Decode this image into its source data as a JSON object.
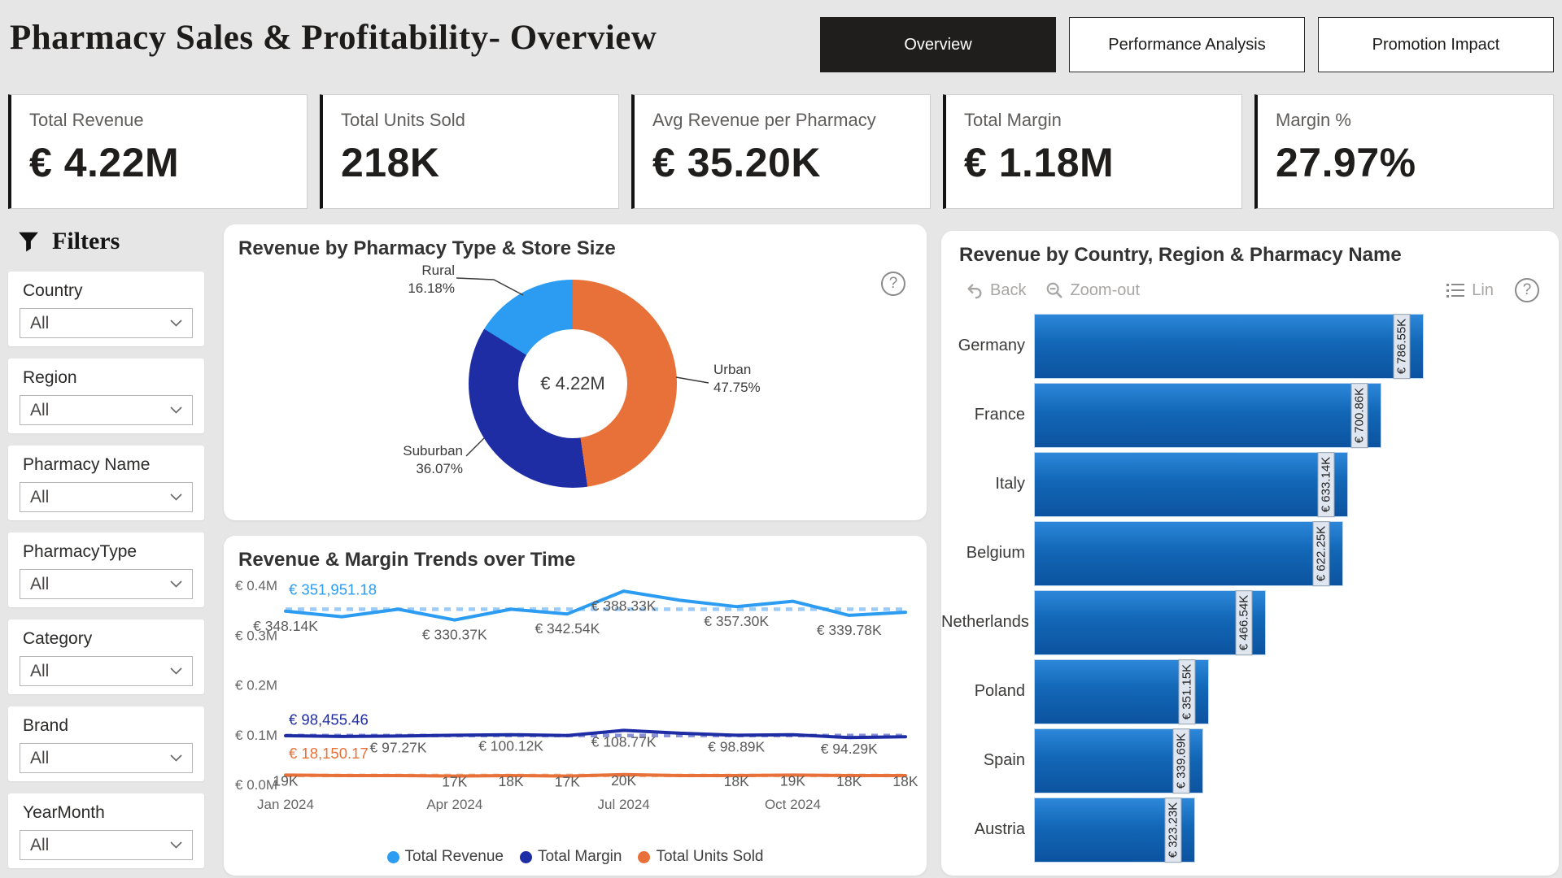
{
  "page": {
    "title": "Pharmacy Sales & Profitability- Overview"
  },
  "tabs": [
    {
      "label": "Overview",
      "active": true
    },
    {
      "label": "Performance Analysis",
      "active": false
    },
    {
      "label": "Promotion Impact",
      "active": false
    }
  ],
  "kpis": [
    {
      "label": "Total Revenue",
      "value": "€ 4.22M"
    },
    {
      "label": "Total Units Sold",
      "value": "218K"
    },
    {
      "label": "Avg Revenue per Pharmacy",
      "value": "€ 35.20K"
    },
    {
      "label": "Total Margin",
      "value": "€ 1.18M"
    },
    {
      "label": "Margin %",
      "value": "27.97%"
    }
  ],
  "filters": {
    "heading": "Filters",
    "items": [
      {
        "label": "Country",
        "value": "All"
      },
      {
        "label": "Region",
        "value": "All"
      },
      {
        "label": "Pharmacy Name",
        "value": "All"
      },
      {
        "label": "PharmacyType",
        "value": "All"
      },
      {
        "label": "Category",
        "value": "All"
      },
      {
        "label": "Brand",
        "value": "All"
      },
      {
        "label": "YearMonth",
        "value": "All"
      }
    ]
  },
  "chart_data": [
    {
      "id": "donut",
      "type": "pie",
      "title": "Revenue by Pharmacy Type & Store Size",
      "center_label": "€ 4.22M",
      "help_icon": "?",
      "slices": [
        {
          "label": "Urban",
          "pct": 47.75,
          "pct_label": "47.75%",
          "color": "#E8713A"
        },
        {
          "label": "Suburban",
          "pct": 36.07,
          "pct_label": "36.07%",
          "color": "#1F2DA5"
        },
        {
          "label": "Rural",
          "pct": 16.18,
          "pct_label": "16.18%",
          "color": "#2B9CF2"
        }
      ]
    },
    {
      "id": "trend",
      "type": "line",
      "title": "Revenue & Margin Trends over Time",
      "x_ticks": [
        "Jan 2024",
        "Apr 2024",
        "Jul 2024",
        "Oct 2024"
      ],
      "x_tick_months": [
        0,
        3,
        6,
        9
      ],
      "y_ticks": [
        "€ 0.4M",
        "€ 0.3M",
        "€ 0.2M",
        "€ 0.1M",
        "€ 0.0M"
      ],
      "y_axis_max_k": 400,
      "series": [
        {
          "name": "Total Revenue",
          "color": "#2B9CF2",
          "avg_color": "#9CCBF7",
          "avg_k": 351.95,
          "avg_label": "€ 351,951.18",
          "values_k": [
            348.14,
            337,
            352,
            330.37,
            352,
            342.54,
            388.33,
            370,
            357.3,
            368,
            339.78,
            346
          ],
          "labels": [
            {
              "m": 0,
              "text": "€ 348.14K"
            },
            {
              "m": 3,
              "text": "€ 330.37K"
            },
            {
              "m": 5,
              "text": "€ 342.54K"
            },
            {
              "m": 6,
              "text": "€ 388.33K"
            },
            {
              "m": 8,
              "text": "€ 357.30K"
            },
            {
              "m": 10,
              "text": "€ 339.78K"
            }
          ]
        },
        {
          "name": "Total Margin",
          "color": "#1F2DA5",
          "avg_color": "#8A93D8",
          "avg_k": 98.46,
          "avg_label": "€ 98,455.46",
          "values_k": [
            98,
            96.5,
            97.27,
            99,
            100.12,
            98.5,
            108.77,
            103,
            98.89,
            100,
            94.29,
            96
          ],
          "labels": [
            {
              "m": 2,
              "text": "€ 97.27K"
            },
            {
              "m": 4,
              "text": "€ 100.12K"
            },
            {
              "m": 6,
              "text": "€ 108.77K"
            },
            {
              "m": 8,
              "text": "€ 98.89K"
            },
            {
              "m": 10,
              "text": "€ 94.29K"
            }
          ]
        },
        {
          "name": "Total Units Sold",
          "color": "#E8713A",
          "avg_color": "#F2BA93",
          "avg_k": 18.15,
          "avg_label": "€ 18,150.17",
          "values_k": [
            19,
            18,
            18,
            17,
            18,
            17,
            20,
            18,
            18,
            19,
            18,
            18
          ],
          "labels": [
            {
              "m": 0,
              "text": "19K"
            },
            {
              "m": 3,
              "text": "17K"
            },
            {
              "m": 4,
              "text": "18K"
            },
            {
              "m": 5,
              "text": "17K"
            },
            {
              "m": 6,
              "text": "20K"
            },
            {
              "m": 8,
              "text": "18K"
            },
            {
              "m": 9,
              "text": "19K"
            },
            {
              "m": 10,
              "text": "18K"
            },
            {
              "m": 11,
              "text": "18K"
            }
          ]
        }
      ],
      "legend": [
        "Total Revenue",
        "Total Margin",
        "Total Units Sold"
      ]
    },
    {
      "id": "bars",
      "type": "bar",
      "title": "Revenue by Country, Region & Pharmacy Name",
      "toolbar": {
        "back": "Back",
        "zoom_out": "Zoom-out",
        "lin": "Lin",
        "help": "?"
      },
      "categories": [
        "Germany",
        "France",
        "Italy",
        "Belgium",
        "Netherlands",
        "Poland",
        "Spain",
        "Austria"
      ],
      "values_k": [
        786.55,
        700.86,
        633.14,
        622.25,
        466.54,
        351.15,
        339.69,
        323.23
      ],
      "value_labels": [
        "€ 786.55K",
        "€ 700.86K",
        "€ 633.14K",
        "€ 622.25K",
        "€ 466.54K",
        "€ 351.15K",
        "€ 339.69K",
        "€ 323.23K"
      ],
      "bar_color": "#1267B6"
    }
  ]
}
